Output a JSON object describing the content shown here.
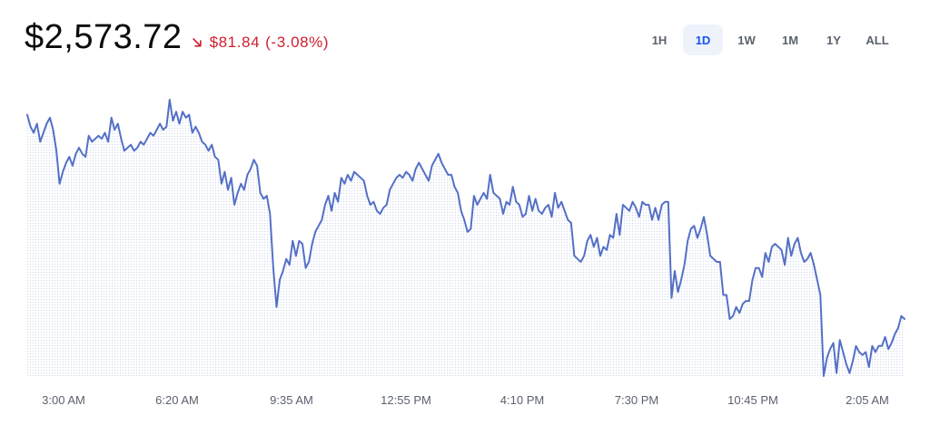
{
  "price": {
    "current": "$2,573.72",
    "change_amount": "$81.84",
    "change_percent": "(-3.08%)",
    "direction_icon": "arrow-down-right-icon",
    "negative_color": "#cf202f"
  },
  "range_selector": {
    "options": [
      "1H",
      "1D",
      "1W",
      "1M",
      "1Y",
      "ALL"
    ],
    "selected": "1D",
    "accent_color": "#1652f0"
  },
  "chart_data": {
    "type": "line",
    "line_color": "#5470c6",
    "fill": "dotted",
    "x_labels": [
      "3:00 AM",
      "6:20 AM",
      "9:35 AM",
      "12:55 PM",
      "4:10 PM",
      "7:30 PM",
      "10:45 PM",
      "2:05 AM"
    ],
    "y_values": [
      2654,
      2650,
      2648,
      2651,
      2645,
      2648,
      2651,
      2653,
      2649,
      2642,
      2631,
      2635,
      2638,
      2640,
      2637,
      2641,
      2643,
      2641,
      2640,
      2647,
      2645,
      2646,
      2647,
      2646,
      2648,
      2645,
      2653,
      2649,
      2651,
      2646,
      2642,
      2643,
      2644,
      2642,
      2643,
      2645,
      2644,
      2646,
      2648,
      2647,
      2649,
      2651,
      2649,
      2650,
      2659,
      2652,
      2655,
      2651,
      2655,
      2653,
      2654,
      2648,
      2650,
      2648,
      2645,
      2644,
      2642,
      2644,
      2640,
      2639,
      2631,
      2635,
      2629,
      2633,
      2624,
      2628,
      2631,
      2629,
      2634,
      2636,
      2639,
      2637,
      2628,
      2626,
      2627,
      2621,
      2603,
      2590,
      2599,
      2602,
      2606,
      2604,
      2612,
      2607,
      2612,
      2611,
      2603,
      2605,
      2611,
      2615,
      2617,
      2619,
      2624,
      2627,
      2622,
      2628,
      2625,
      2633,
      2631,
      2634,
      2632,
      2635,
      2634,
      2633,
      2632,
      2627,
      2624,
      2625,
      2622,
      2621,
      2623,
      2624,
      2629,
      2631,
      2633,
      2634,
      2633,
      2635,
      2634,
      2632,
      2636,
      2638,
      2636,
      2634,
      2632,
      2637,
      2639,
      2641,
      2638,
      2636,
      2634,
      2634,
      2630,
      2628,
      2622,
      2619,
      2615,
      2616,
      2627,
      2624,
      2626,
      2628,
      2626,
      2634,
      2628,
      2627,
      2626,
      2621,
      2625,
      2624,
      2630,
      2625,
      2624,
      2620,
      2621,
      2627,
      2622,
      2626,
      2622,
      2621,
      2623,
      2624,
      2620,
      2628,
      2623,
      2625,
      2622,
      2619,
      2618,
      2607,
      2606,
      2605,
      2607,
      2612,
      2614,
      2610,
      2613,
      2607,
      2610,
      2609,
      2614,
      2613,
      2621,
      2614,
      2624,
      2623,
      2622,
      2625,
      2623,
      2620,
      2625,
      2624,
      2624,
      2619,
      2623,
      2619,
      2624,
      2625,
      2625,
      2593,
      2602,
      2595,
      2599,
      2604,
      2612,
      2616,
      2617,
      2613,
      2616,
      2620,
      2614,
      2607,
      2606,
      2605,
      2605,
      2594,
      2594,
      2586,
      2587,
      2590,
      2588,
      2591,
      2592,
      2592,
      2599,
      2603,
      2603,
      2600,
      2608,
      2605,
      2610,
      2611,
      2610,
      2609,
      2604,
      2613,
      2607,
      2611,
      2613,
      2608,
      2605,
      2606,
      2608,
      2604,
      2599,
      2594,
      2567,
      2573,
      2576,
      2578,
      2568,
      2579,
      2575,
      2571,
      2568,
      2572,
      2577,
      2575,
      2574,
      2575,
      2570,
      2577,
      2575,
      2577,
      2577,
      2580,
      2576,
      2578,
      2581,
      2583,
      2587,
      2586
    ]
  }
}
